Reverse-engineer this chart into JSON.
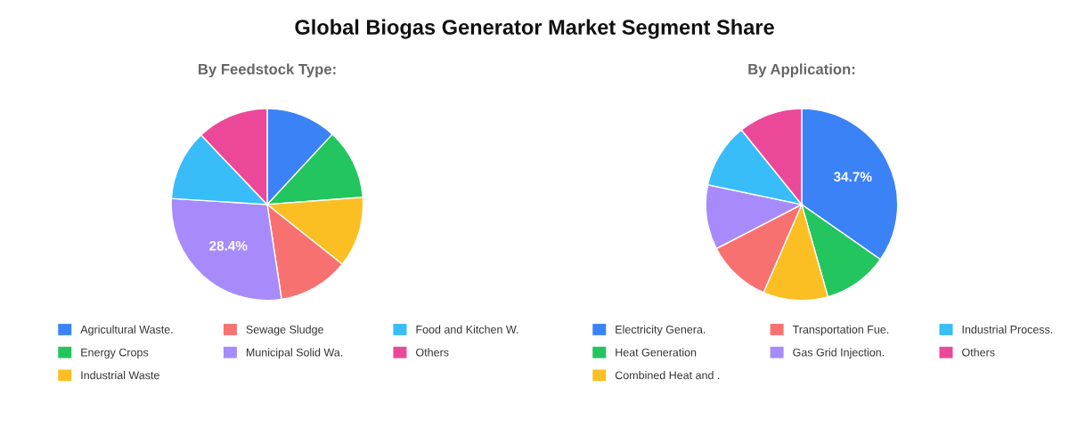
{
  "chart_data": [
    {
      "type": "pie",
      "title": "Global Biogas Generator Market Segment Share",
      "subtitle": "By Feedstock Type:",
      "categories": [
        "Agricultural Waste.",
        "Energy Crops",
        "Industrial Waste",
        "Sewage Sludge",
        "Municipal Solid Wa.",
        "Food and Kitchen W.",
        "Others"
      ],
      "values": [
        11.9,
        11.9,
        11.9,
        11.9,
        28.4,
        11.9,
        12.1
      ],
      "value_labels": [
        null,
        null,
        null,
        null,
        "28.4%",
        null,
        null
      ],
      "colors": [
        "#3b82f6",
        "#22c55e",
        "#fbbf24",
        "#f87171",
        "#a78bfa",
        "#38bdf8",
        "#ec4899"
      ],
      "legend": "bottom"
    },
    {
      "type": "pie",
      "subtitle": "By Application:",
      "categories": [
        "Electricity Genera.",
        "Heat Generation",
        "Combined Heat and .",
        "Transportation Fue.",
        "Gas Grid Injection.",
        "Industrial Process.",
        "Others"
      ],
      "values": [
        34.7,
        10.9,
        10.9,
        10.9,
        10.9,
        10.9,
        10.8
      ],
      "value_labels": [
        "34.7%",
        null,
        null,
        null,
        null,
        null,
        null
      ],
      "colors": [
        "#3b82f6",
        "#22c55e",
        "#fbbf24",
        "#f87171",
        "#a78bfa",
        "#38bdf8",
        "#ec4899"
      ],
      "legend": "bottom"
    }
  ]
}
